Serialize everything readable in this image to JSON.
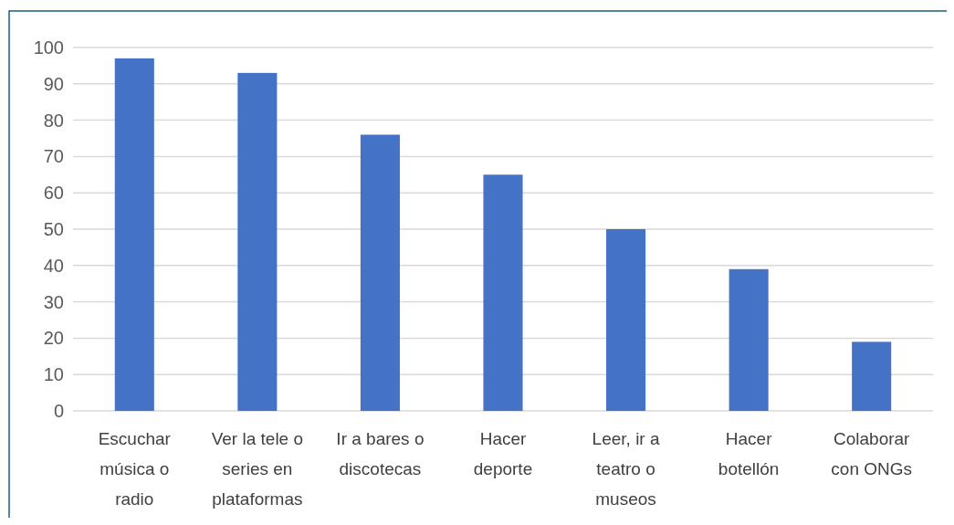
{
  "chart_data": {
    "type": "bar",
    "categories": [
      "Escuchar música o radio",
      "Ver la tele o series en plataformas",
      "Ir a bares o discotecas",
      "Hacer deporte",
      "Leer, ir a teatro o museos",
      "Hacer botellón",
      "Colaborar con ONGs"
    ],
    "values": [
      97,
      93,
      76,
      65,
      50,
      39,
      19
    ],
    "color": "#4472c4",
    "ylim": [
      0,
      100
    ],
    "yticks": [
      0,
      10,
      20,
      30,
      40,
      50,
      60,
      70,
      80,
      90,
      100
    ],
    "grid": "y"
  }
}
